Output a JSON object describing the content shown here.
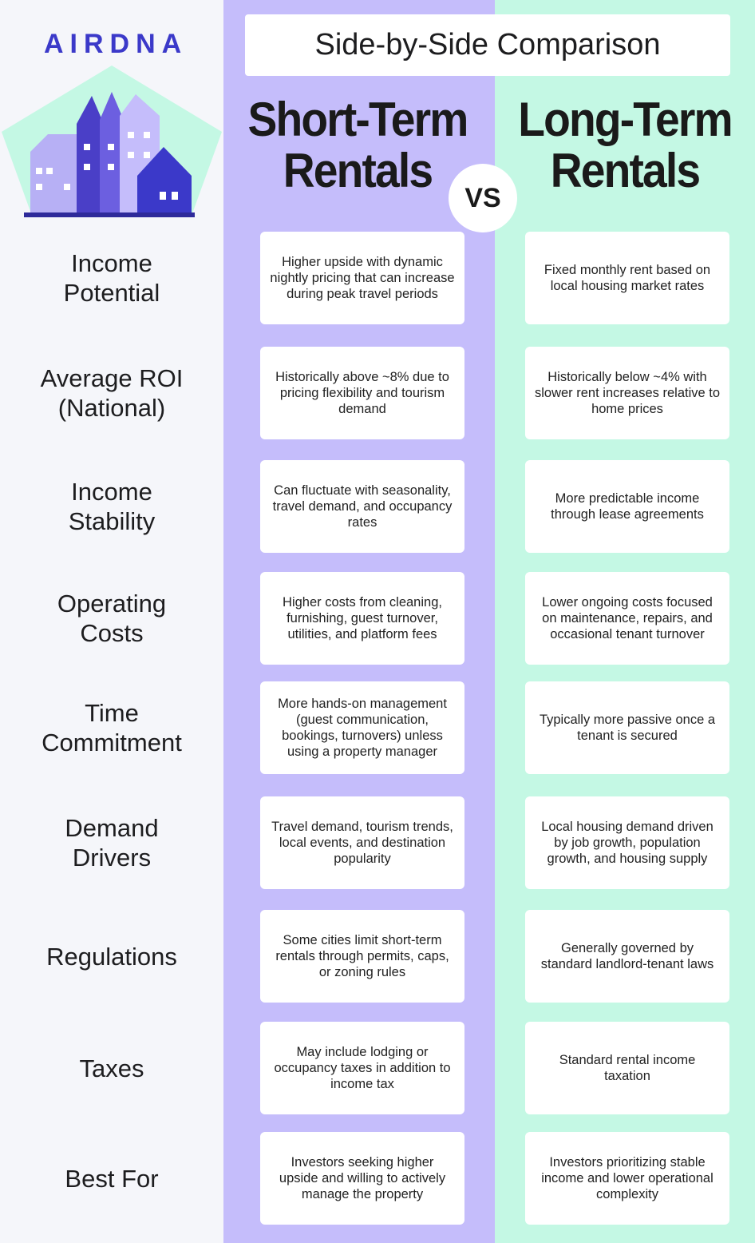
{
  "logo": "AIRDNA",
  "title": "Side-by-Side Comparison",
  "short_term_heading": "Short-Term Rentals",
  "long_term_heading": "Long-Term Rentals",
  "vs": "VS",
  "rows": [
    {
      "label": "Income Potential",
      "short_term": "Higher upside with dynamic nightly pricing that can increase during peak travel periods",
      "long_term": "Fixed monthly rent based on local housing market rates"
    },
    {
      "label": "Average ROI (National)",
      "short_term": "Historically above ~8% due to pricing flexibility and tourism demand",
      "long_term": "Historically below ~4% with slower rent increases relative to home prices"
    },
    {
      "label": "Income Stability",
      "short_term": "Can fluctuate with seasonality, travel demand, and occupancy rates",
      "long_term": "More predictable income through lease agreements"
    },
    {
      "label": "Operating Costs",
      "short_term": "Higher costs from cleaning, furnishing, guest turnover, utilities, and platform fees",
      "long_term": "Lower ongoing costs focused on maintenance, repairs, and occasional tenant turnover"
    },
    {
      "label": "Time Commitment",
      "short_term": "More hands-on management (guest communication, bookings, turnovers) unless using a property manager",
      "long_term": "Typically more passive once a tenant is secured"
    },
    {
      "label": "Demand Drivers",
      "short_term": "Travel demand, tourism trends, local events, and destination popularity",
      "long_term": "Local housing demand driven by job growth, population growth, and housing supply"
    },
    {
      "label": "Regulations",
      "short_term": "Some cities limit short-term rentals through permits, caps, or zoning rules",
      "long_term": "Generally governed by standard landlord-tenant laws"
    },
    {
      "label": "Taxes",
      "short_term": "May include lodging or occupancy taxes in addition to income tax",
      "long_term": "Standard rental income taxation"
    },
    {
      "label": "Best For",
      "short_term": "Investors seeking higher upside and willing to actively manage the property",
      "long_term": "Investors prioritizing stable income and lower operational complexity"
    }
  ]
}
